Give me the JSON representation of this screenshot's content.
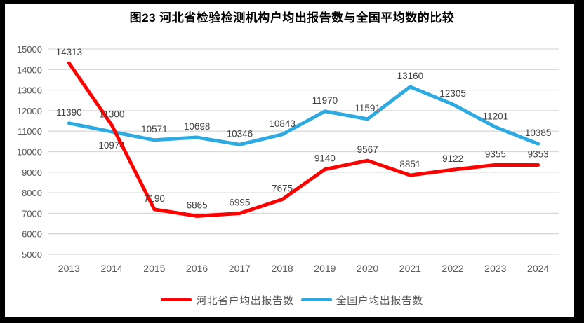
{
  "title": "图23  河北省检验检测机构户均出报告数与全国平均数的比较",
  "chart_data": {
    "type": "line",
    "categories": [
      "2013",
      "2014",
      "2015",
      "2016",
      "2017",
      "2018",
      "2019",
      "2020",
      "2021",
      "2022",
      "2023",
      "2024"
    ],
    "series": [
      {
        "name": "河北省户均出报告数",
        "color": "#FF0000",
        "values": [
          14313,
          11300,
          7190,
          6865,
          6995,
          7675,
          9140,
          9567,
          8851,
          9122,
          9355,
          9353
        ],
        "labels_below": []
      },
      {
        "name": "全国户均出报告数",
        "color": "#2DAAE1",
        "values": [
          11390,
          10974,
          10571,
          10698,
          10346,
          10843,
          11970,
          11591,
          13160,
          12305,
          11201,
          10385
        ],
        "labels_below": [
          1
        ]
      }
    ],
    "ylim": [
      5000,
      15000
    ],
    "ytick_step": 1000,
    "yticks": [
      "5000",
      "6000",
      "7000",
      "8000",
      "9000",
      "10000",
      "11000",
      "12000",
      "13000",
      "14000",
      "15000"
    ],
    "grid": true,
    "legend_position": "bottom",
    "gridline_color": "#D9D9D9",
    "axis_label_color": "#595959",
    "data_label_color": "#404040"
  }
}
